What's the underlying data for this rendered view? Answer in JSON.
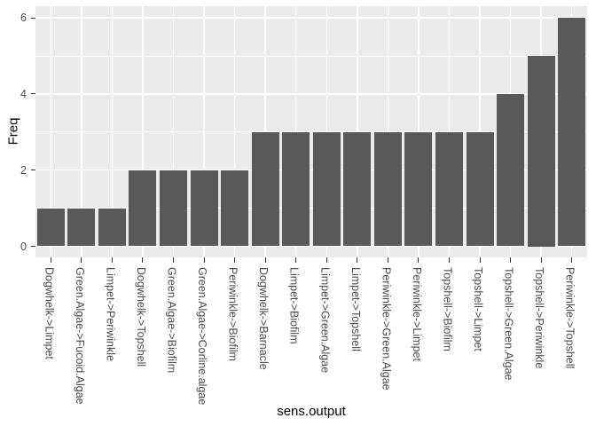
{
  "chart_data": {
    "type": "bar",
    "title": "",
    "xlabel": "sens.output",
    "ylabel": "Freq",
    "categories": [
      "Dogwhelk->Limpet",
      "Green.Algae->Fucoid.Algae",
      "Limpet->Periwinkle",
      "Dogwhelk->Topshell",
      "Green.Algae->Biofilm",
      "Green.Algae->Corline.algae",
      "Periwinkle->Biofilm",
      "Dogwhelk->Barnacle",
      "Limpet->Biofilm",
      "Limpet->Green.Algae",
      "Limpet->Topshell",
      "Periwinkle->Green.Algae",
      "Periwinkle->Limpet",
      "Topshell->Biofilm",
      "Topshell->Limpet",
      "Topshell->Green.Algae",
      "Topshell->Periwinkle",
      "Periwinkle->Topshell"
    ],
    "values": [
      1,
      1,
      1,
      2,
      2,
      2,
      2,
      3,
      3,
      3,
      3,
      3,
      3,
      3,
      3,
      4,
      5,
      6
    ],
    "ylim": [
      0,
      6
    ],
    "yticks": [
      0,
      2,
      4,
      6
    ],
    "minor_yticks": [
      1,
      3,
      5
    ],
    "legend": "none",
    "grid": "major and minor white gridlines on gray panel",
    "style": {
      "bar_color": "#595959",
      "panel_bg": "#EBEBEB",
      "grid_color": "#FFFFFF",
      "axis_text_color": "#4D4D4D",
      "axis_title_color": "#000000",
      "tick_mark_color": "#333333",
      "background": "#FFFFFF"
    }
  }
}
